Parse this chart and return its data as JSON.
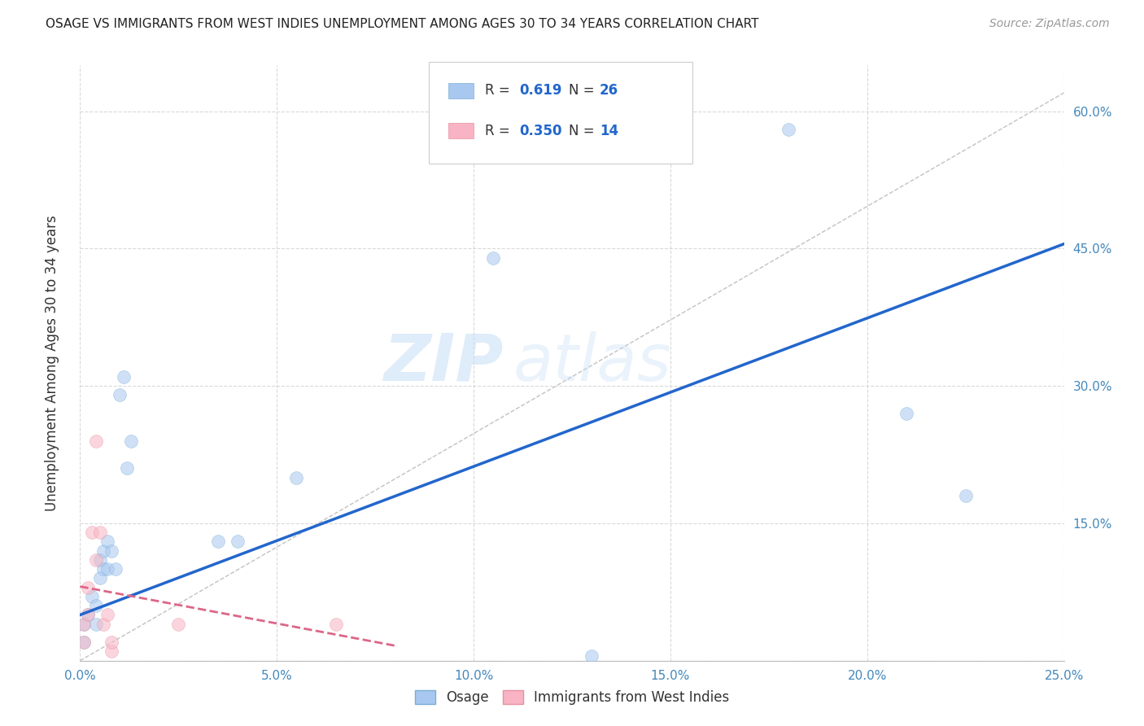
{
  "title": "OSAGE VS IMMIGRANTS FROM WEST INDIES UNEMPLOYMENT AMONG AGES 30 TO 34 YEARS CORRELATION CHART",
  "source": "Source: ZipAtlas.com",
  "ylabel": "Unemployment Among Ages 30 to 34 years",
  "xlim": [
    0.0,
    0.25
  ],
  "ylim": [
    0.0,
    0.65
  ],
  "xticks": [
    0.0,
    0.05,
    0.1,
    0.15,
    0.2,
    0.25
  ],
  "yticks": [
    0.0,
    0.15,
    0.3,
    0.45,
    0.6
  ],
  "xtick_labels": [
    "0.0%",
    "5.0%",
    "10.0%",
    "15.0%",
    "20.0%",
    "25.0%"
  ],
  "ytick_labels": [
    "",
    "15.0%",
    "30.0%",
    "45.0%",
    "60.0%"
  ],
  "background_color": "#ffffff",
  "grid_color": "#d0d0d0",
  "watermark_zip": "ZIP",
  "watermark_atlas": "atlas",
  "osage_color": "#a8c8f0",
  "osage_edge_color": "#7aaed6",
  "immigrants_color": "#f8b4c4",
  "immigrants_edge_color": "#e890a0",
  "trend_blue": "#2266cc",
  "trend_pink": "#dd6688",
  "ref_line_color": "#bbbbbb",
  "R_osage": 0.619,
  "N_osage": 26,
  "R_immigrants": 0.35,
  "N_immigrants": 14,
  "osage_x": [
    0.001,
    0.001,
    0.002,
    0.003,
    0.004,
    0.004,
    0.005,
    0.005,
    0.006,
    0.006,
    0.007,
    0.007,
    0.008,
    0.009,
    0.01,
    0.011,
    0.012,
    0.013,
    0.035,
    0.04,
    0.055,
    0.13,
    0.105,
    0.18,
    0.21,
    0.225
  ],
  "osage_y": [
    0.02,
    0.04,
    0.05,
    0.07,
    0.04,
    0.06,
    0.09,
    0.11,
    0.1,
    0.12,
    0.1,
    0.13,
    0.12,
    0.1,
    0.29,
    0.31,
    0.21,
    0.24,
    0.13,
    0.13,
    0.2,
    0.005,
    0.44,
    0.58,
    0.27,
    0.18
  ],
  "immigrants_x": [
    0.001,
    0.001,
    0.002,
    0.002,
    0.003,
    0.004,
    0.004,
    0.005,
    0.006,
    0.007,
    0.008,
    0.008,
    0.025,
    0.065
  ],
  "immigrants_y": [
    0.02,
    0.04,
    0.05,
    0.08,
    0.14,
    0.11,
    0.24,
    0.14,
    0.04,
    0.05,
    0.01,
    0.02,
    0.04,
    0.04
  ],
  "legend_labels": [
    "Osage",
    "Immigrants from West Indies"
  ],
  "marker_size": 130,
  "marker_alpha": 0.55
}
